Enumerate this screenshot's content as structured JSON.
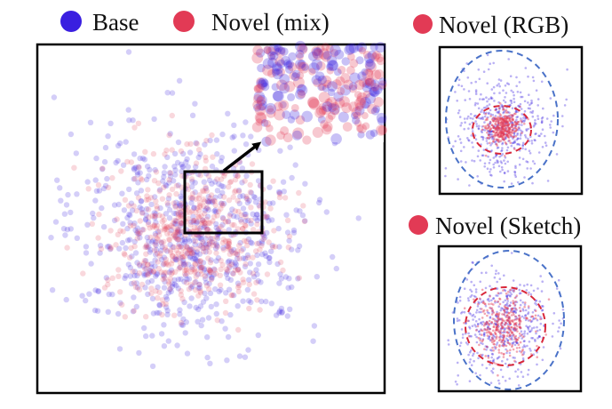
{
  "colors": {
    "base": "#3a1fe0",
    "novel": "#e23a55",
    "ring_outer": "#4a72c8",
    "ring_inner": "#d9283a",
    "frame": "#000000"
  },
  "legend": {
    "base_label": "Base",
    "novel_mix_label": "Novel (mix)"
  },
  "panels": {
    "rgb_title": "Novel (RGB)",
    "sketch_title": "Novel (Sketch)"
  },
  "chart_data": [
    {
      "type": "scatter",
      "title": "",
      "series": [
        {
          "name": "Base",
          "color": "#3a1fe0",
          "count": 700,
          "center": [
            0,
            0
          ],
          "spread": 1.0
        },
        {
          "name": "Novel (mix)",
          "color": "#e23a55",
          "count": 550,
          "center": [
            0,
            0
          ],
          "spread": 0.75
        }
      ],
      "inset": {
        "zoom_region": [
          [
            -0.2,
            0.35
          ],
          [
            0.75,
            1.0
          ]
        ],
        "arrow": true
      },
      "grid": false,
      "axes_visible": false
    },
    {
      "type": "scatter",
      "title": "Novel (RGB)",
      "series": [
        {
          "name": "Base",
          "color": "#3a1fe0",
          "count": 500,
          "spread": 1.0
        },
        {
          "name": "Novel (RGB)",
          "color": "#e23a55",
          "count": 300,
          "spread": 0.25
        }
      ],
      "circles": [
        {
          "color": "#4a72c8",
          "style": "dashed",
          "radius": 1.0
        },
        {
          "color": "#d9283a",
          "style": "dashed",
          "radius": 0.5
        }
      ]
    },
    {
      "type": "scatter",
      "title": "Novel (Sketch)",
      "series": [
        {
          "name": "Base",
          "color": "#3a1fe0",
          "count": 500,
          "spread": 1.0
        },
        {
          "name": "Novel (Sketch)",
          "color": "#e23a55",
          "count": 300,
          "spread": 0.45
        }
      ],
      "circles": [
        {
          "color": "#4a72c8",
          "style": "dashed",
          "radius": 1.0
        },
        {
          "color": "#d9283a",
          "style": "dashed",
          "radius": 0.75
        }
      ]
    }
  ]
}
